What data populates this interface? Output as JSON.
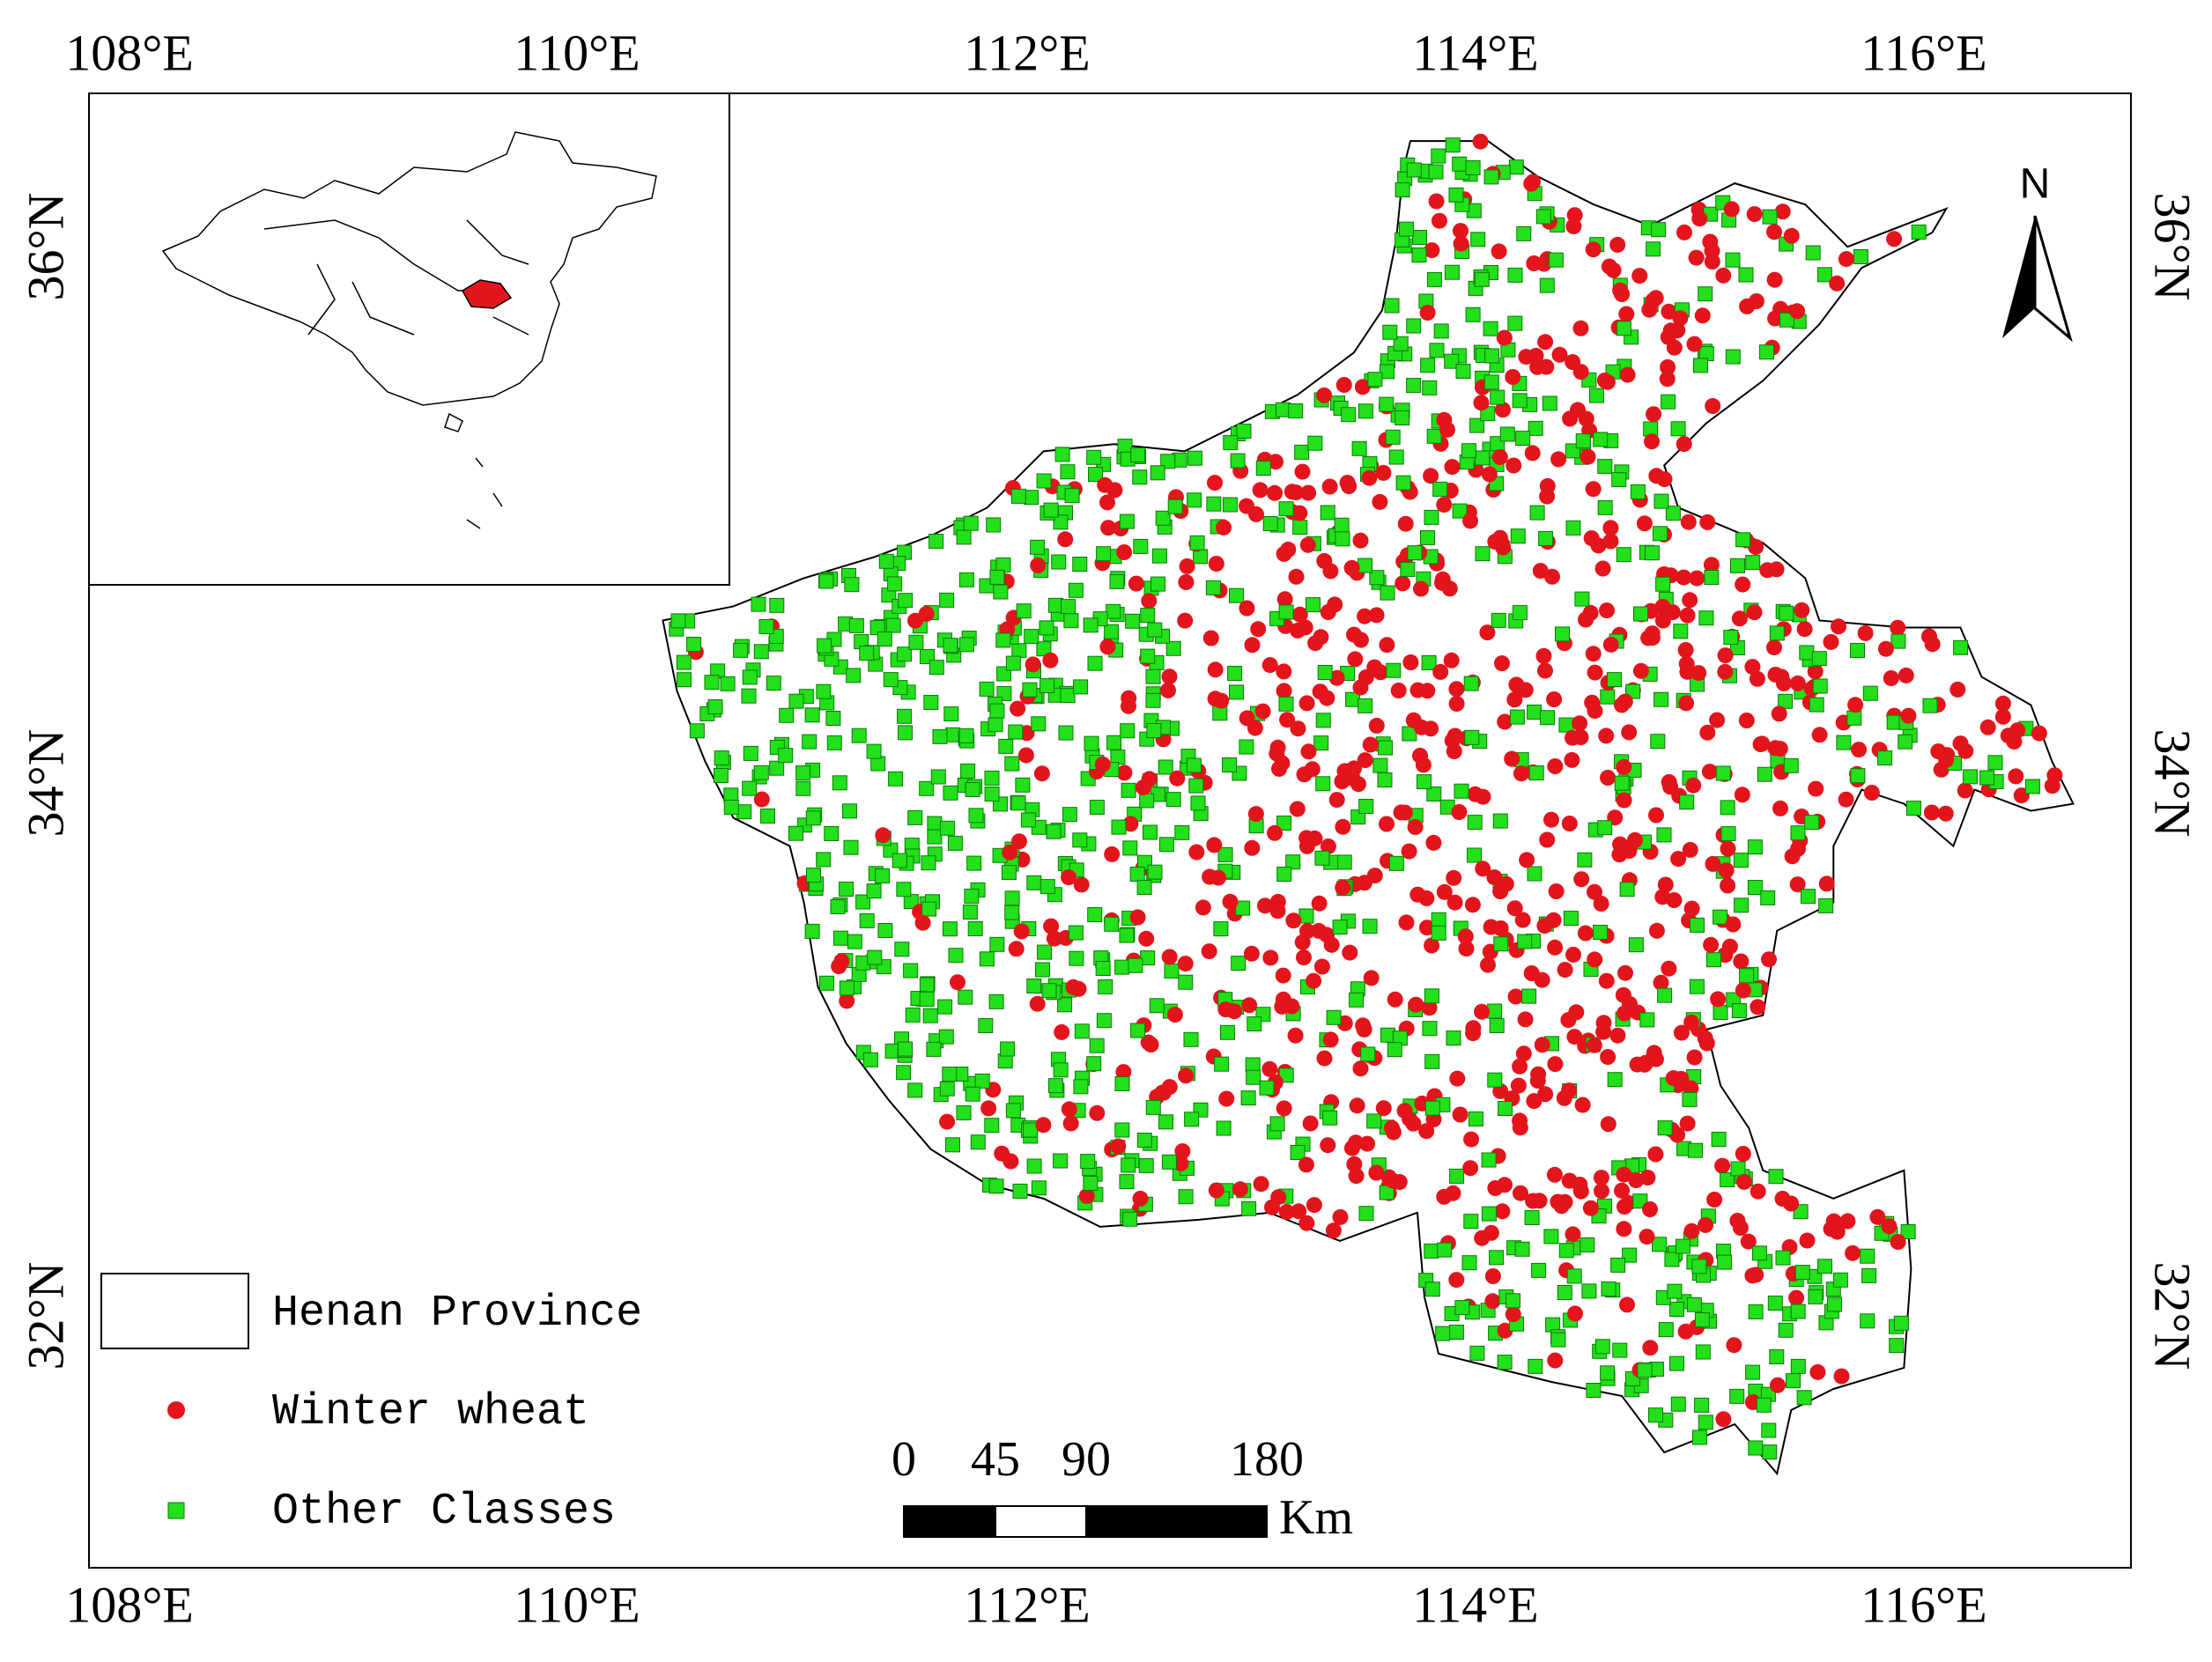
{
  "map": {
    "lon_labels": [
      "108°E",
      "110°E",
      "112°E",
      "114°E",
      "116°E"
    ],
    "lat_labels": [
      "36°N",
      "34°N",
      "32°N"
    ],
    "north": "N",
    "legend": [
      "Henan Province",
      "Winter wheat",
      "Other Classes"
    ],
    "scale_bar": {
      "labels": [
        "0",
        "45",
        "90",
        "180"
      ],
      "unit": "Km"
    }
  }
}
